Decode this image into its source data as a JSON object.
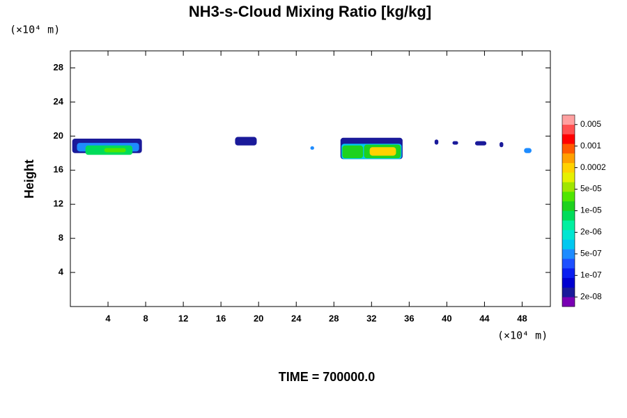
{
  "chart_data": {
    "type": "contour",
    "title": "NH3-s-Cloud Mixing Ratio [kg/kg]",
    "y_label": "Height",
    "x_unit_label": "(×10⁴ m)",
    "y_unit_label": "(×10⁴ m)",
    "footer": "TIME = 700000.0",
    "xlim": [
      0,
      51
    ],
    "ylim": [
      0,
      30
    ],
    "xticks": [
      4,
      8,
      12,
      16,
      20,
      24,
      28,
      32,
      36,
      40,
      44,
      48
    ],
    "yticks": [
      4,
      8,
      12,
      16,
      20,
      24,
      28
    ],
    "colorbar": {
      "colors": [
        "#7a00b4",
        "#1a1a9a",
        "#0000d0",
        "#0a1ef0",
        "#1e50ff",
        "#1e8cff",
        "#00c8f0",
        "#00e6d2",
        "#00f0a0",
        "#00dc5a",
        "#1ed21e",
        "#50e600",
        "#a0e600",
        "#e6f000",
        "#ffd200",
        "#ffa000",
        "#ff5a00",
        "#ff0000",
        "#ff5050",
        "#ffa0a0"
      ],
      "ticks": [
        {
          "value": 2e-08,
          "label": "2e-08"
        },
        {
          "value": 1e-07,
          "label": "1e-07"
        },
        {
          "value": 5e-07,
          "label": "5e-07"
        },
        {
          "value": 2e-06,
          "label": "2e-06"
        },
        {
          "value": 1e-05,
          "label": "1e-05"
        },
        {
          "value": 5e-05,
          "label": "5e-05"
        },
        0.0002,
        0.001,
        0.005
      ]
    },
    "patches": [
      {
        "x": [
          0.2,
          7.6
        ],
        "y": [
          18.0,
          19.7
        ],
        "value": 3e-08
      },
      {
        "x": [
          0.7,
          7.3
        ],
        "y": [
          18.2,
          19.2
        ],
        "value": 6e-07
      },
      {
        "x": [
          1.6,
          6.6
        ],
        "y": [
          17.8,
          18.9
        ],
        "value": 8e-06
      },
      {
        "x": [
          3.6,
          5.9
        ],
        "y": [
          18.1,
          18.6
        ],
        "value": 3e-05
      },
      {
        "x": [
          17.5,
          19.8
        ],
        "y": [
          18.9,
          19.9
        ],
        "value": 3e-08
      },
      {
        "x": [
          25.5,
          25.9
        ],
        "y": [
          18.4,
          18.8
        ],
        "value": 6e-07
      },
      {
        "x": [
          28.7,
          35.3
        ],
        "y": [
          17.3,
          19.8
        ],
        "value": 3e-08
      },
      {
        "x": [
          28.8,
          35.2
        ],
        "y": [
          17.3,
          19.1
        ],
        "value": 1e-06
      },
      {
        "x": [
          28.9,
          31.1
        ],
        "y": [
          17.4,
          18.9
        ],
        "value": 1e-05
      },
      {
        "x": [
          31.2,
          35.1
        ],
        "y": [
          17.4,
          19.0
        ],
        "value": 1.5e-05
      },
      {
        "x": [
          31.8,
          34.6
        ],
        "y": [
          17.7,
          18.7
        ],
        "value": 0.00015
      },
      {
        "x": [
          38.7,
          39.1
        ],
        "y": [
          19.0,
          19.6
        ],
        "value": 3e-08
      },
      {
        "x": [
          40.6,
          41.2
        ],
        "y": [
          19.0,
          19.4
        ],
        "value": 3e-08
      },
      {
        "x": [
          43.0,
          44.2
        ],
        "y": [
          18.9,
          19.4
        ],
        "value": 3e-08
      },
      {
        "x": [
          45.6,
          46.0
        ],
        "y": [
          18.7,
          19.3
        ],
        "value": 3e-08
      },
      {
        "x": [
          48.2,
          49.0
        ],
        "y": [
          18.0,
          18.6
        ],
        "value": 6e-07
      }
    ]
  }
}
